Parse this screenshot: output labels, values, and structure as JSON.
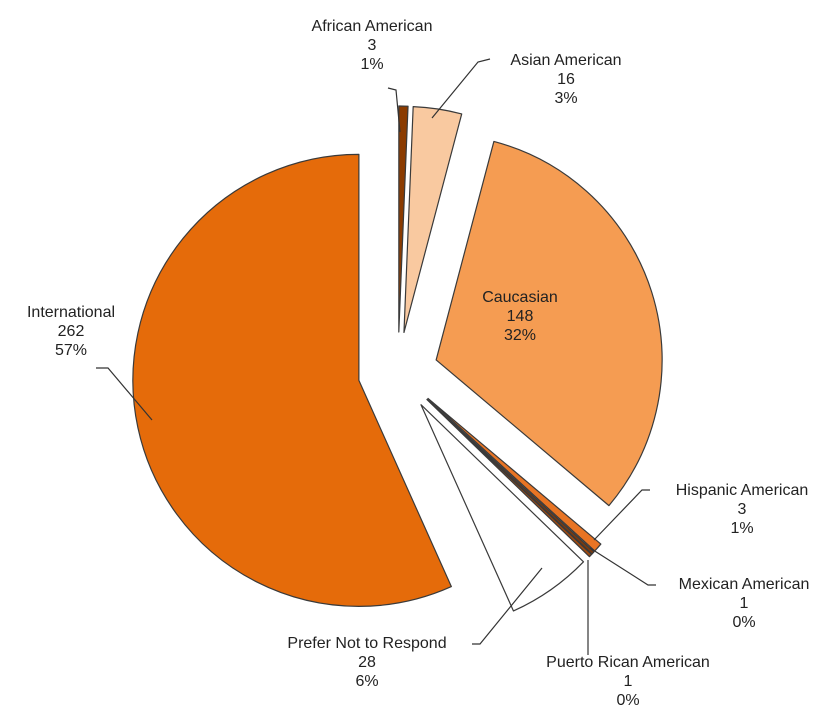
{
  "chart_data": {
    "type": "pie",
    "title": "",
    "slices": [
      {
        "name": "African American",
        "value": 3,
        "pct": "1%",
        "color": "#8b3b00"
      },
      {
        "name": "Asian American",
        "value": 16,
        "pct": "3%",
        "color": "#f9c9a0"
      },
      {
        "name": "Caucasian",
        "value": 148,
        "pct": "32%",
        "color": "#f59c52"
      },
      {
        "name": "Hispanic American",
        "value": 3,
        "pct": "1%",
        "color": "#e87424"
      },
      {
        "name": "Mexican American",
        "value": 1,
        "pct": "0%",
        "color": "#7a3a10"
      },
      {
        "name": "Puerto Rican American",
        "value": 1,
        "pct": "0%",
        "color": "#a04a10"
      },
      {
        "name": "Prefer Not to Respond",
        "value": 28,
        "pct": "6%",
        "color": "#ffffff"
      },
      {
        "name": "International",
        "value": 262,
        "pct": "57%",
        "color": "#e56b0a"
      }
    ]
  }
}
